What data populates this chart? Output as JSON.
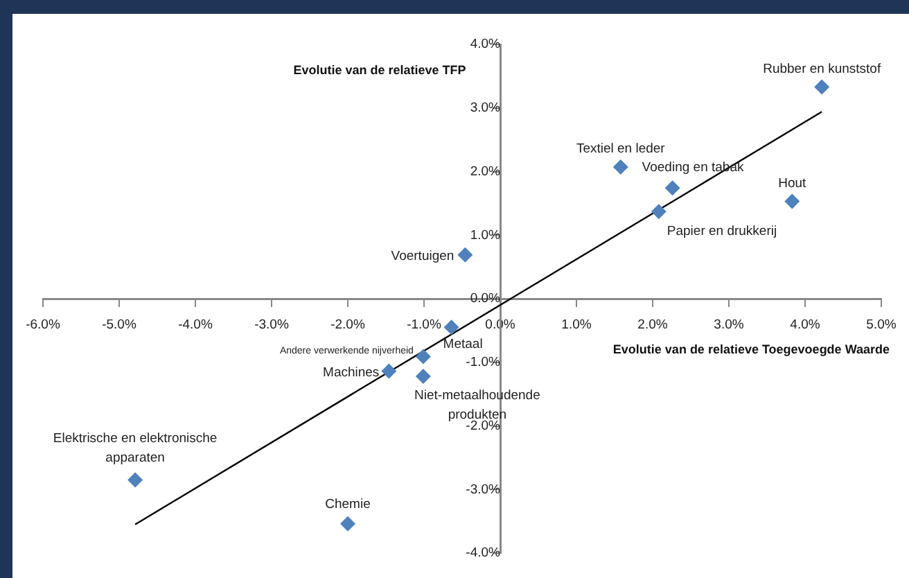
{
  "chart_data": {
    "type": "scatter",
    "xlabel": "Evolutie van de relatieve Toegevoegde Waarde",
    "ylabel": "Evolutie van de relatieve TFP",
    "xlim": [
      -6,
      5
    ],
    "ylim": [
      -4,
      4
    ],
    "xticks": [
      {
        "value": -6,
        "label": "-6.0%"
      },
      {
        "value": -5,
        "label": "-5.0%"
      },
      {
        "value": -4,
        "label": "-4.0%"
      },
      {
        "value": -3,
        "label": "-3.0%"
      },
      {
        "value": -2,
        "label": "-2.0%"
      },
      {
        "value": -1,
        "label": "-1.0%"
      },
      {
        "value": 0,
        "label": "0.0%"
      },
      {
        "value": 1,
        "label": "1.0%"
      },
      {
        "value": 2,
        "label": "2.0%"
      },
      {
        "value": 3,
        "label": "3.0%"
      },
      {
        "value": 4,
        "label": "4.0%"
      },
      {
        "value": 5,
        "label": "5.0%"
      }
    ],
    "yticks": [
      {
        "value": -4,
        "label": "-4.0%"
      },
      {
        "value": -3,
        "label": "-3.0%"
      },
      {
        "value": -2,
        "label": "-2.0%"
      },
      {
        "value": -1,
        "label": "-1.0%"
      },
      {
        "value": 0,
        "label": "0.0%"
      },
      {
        "value": 1,
        "label": "1.0%"
      },
      {
        "value": 2,
        "label": "2.0%"
      },
      {
        "value": 3,
        "label": "3.0%"
      },
      {
        "value": 4,
        "label": "4.0%"
      }
    ],
    "grid": false,
    "legend": false,
    "marker": "diamond",
    "series": [
      {
        "type": "scatter",
        "color": "#4f81bd",
        "x": [
          4.22,
          1.58,
          2.26,
          2.08,
          3.83,
          -0.46,
          -0.64,
          -1.01,
          -1.46,
          -1.01,
          -4.79,
          -2.0
        ],
        "values": [
          3.33,
          2.07,
          1.74,
          1.37,
          1.53,
          0.69,
          -0.45,
          -0.91,
          -1.14,
          -1.22,
          -2.85,
          -3.54
        ]
      },
      {
        "type": "line",
        "color": "#000000",
        "marker": "none",
        "x": [
          -4.79,
          4.22
        ],
        "values": [
          -3.55,
          2.94
        ]
      }
    ],
    "annotations": [
      {
        "text": "Rubber en kunststof",
        "x": 4.22,
        "y": 3.33
      },
      {
        "text": "Textiel en leder",
        "x": 1.58,
        "y": 2.07
      },
      {
        "text": "Voeding en tabak",
        "x": 2.26,
        "y": 1.74
      },
      {
        "text": "Papier en drukkerij",
        "x": 2.08,
        "y": 1.37
      },
      {
        "text": "Hout",
        "x": 3.83,
        "y": 1.53
      },
      {
        "text": "Voertuigen",
        "x": -0.46,
        "y": 0.69
      },
      {
        "text": "Metaal",
        "x": -0.64,
        "y": -0.45
      },
      {
        "text": "Andere verwerkende nijverheid",
        "x": -1.01,
        "y": -0.91
      },
      {
        "text": "Machines",
        "x": -1.46,
        "y": -1.14
      },
      {
        "text": "Niet-metaalhoudende produkten",
        "x": -1.01,
        "y": -1.22
      },
      {
        "text": "Elektrische en elektronische apparaten",
        "x": -4.79,
        "y": -2.85
      },
      {
        "text": "Chemie",
        "x": -2.0,
        "y": -3.54
      }
    ]
  }
}
